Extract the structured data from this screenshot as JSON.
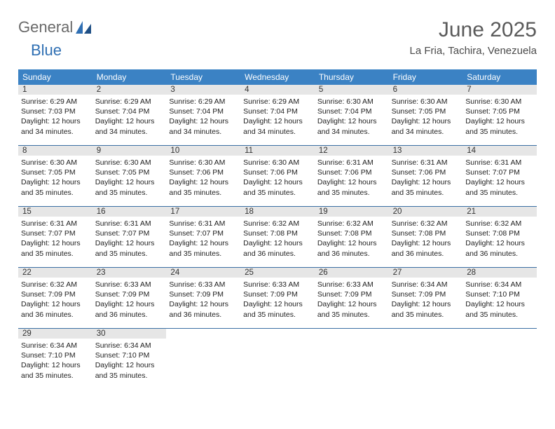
{
  "brand": {
    "part1": "General",
    "part2": "Blue"
  },
  "header": {
    "title": "June 2025",
    "location": "La Fria, Tachira, Venezuela"
  },
  "colors": {
    "header_blue": "#3b82c4",
    "divider": "#3b6fa3",
    "day_bg": "#e6e6e6",
    "text": "#222222",
    "background": "#ffffff"
  },
  "weekdays": [
    "Sunday",
    "Monday",
    "Tuesday",
    "Wednesday",
    "Thursday",
    "Friday",
    "Saturday"
  ],
  "weeks": [
    [
      {
        "day": "1",
        "sunrise": "Sunrise: 6:29 AM",
        "sunset": "Sunset: 7:03 PM",
        "daylight1": "Daylight: 12 hours",
        "daylight2": "and 34 minutes."
      },
      {
        "day": "2",
        "sunrise": "Sunrise: 6:29 AM",
        "sunset": "Sunset: 7:04 PM",
        "daylight1": "Daylight: 12 hours",
        "daylight2": "and 34 minutes."
      },
      {
        "day": "3",
        "sunrise": "Sunrise: 6:29 AM",
        "sunset": "Sunset: 7:04 PM",
        "daylight1": "Daylight: 12 hours",
        "daylight2": "and 34 minutes."
      },
      {
        "day": "4",
        "sunrise": "Sunrise: 6:29 AM",
        "sunset": "Sunset: 7:04 PM",
        "daylight1": "Daylight: 12 hours",
        "daylight2": "and 34 minutes."
      },
      {
        "day": "5",
        "sunrise": "Sunrise: 6:30 AM",
        "sunset": "Sunset: 7:04 PM",
        "daylight1": "Daylight: 12 hours",
        "daylight2": "and 34 minutes."
      },
      {
        "day": "6",
        "sunrise": "Sunrise: 6:30 AM",
        "sunset": "Sunset: 7:05 PM",
        "daylight1": "Daylight: 12 hours",
        "daylight2": "and 34 minutes."
      },
      {
        "day": "7",
        "sunrise": "Sunrise: 6:30 AM",
        "sunset": "Sunset: 7:05 PM",
        "daylight1": "Daylight: 12 hours",
        "daylight2": "and 35 minutes."
      }
    ],
    [
      {
        "day": "8",
        "sunrise": "Sunrise: 6:30 AM",
        "sunset": "Sunset: 7:05 PM",
        "daylight1": "Daylight: 12 hours",
        "daylight2": "and 35 minutes."
      },
      {
        "day": "9",
        "sunrise": "Sunrise: 6:30 AM",
        "sunset": "Sunset: 7:05 PM",
        "daylight1": "Daylight: 12 hours",
        "daylight2": "and 35 minutes."
      },
      {
        "day": "10",
        "sunrise": "Sunrise: 6:30 AM",
        "sunset": "Sunset: 7:06 PM",
        "daylight1": "Daylight: 12 hours",
        "daylight2": "and 35 minutes."
      },
      {
        "day": "11",
        "sunrise": "Sunrise: 6:30 AM",
        "sunset": "Sunset: 7:06 PM",
        "daylight1": "Daylight: 12 hours",
        "daylight2": "and 35 minutes."
      },
      {
        "day": "12",
        "sunrise": "Sunrise: 6:31 AM",
        "sunset": "Sunset: 7:06 PM",
        "daylight1": "Daylight: 12 hours",
        "daylight2": "and 35 minutes."
      },
      {
        "day": "13",
        "sunrise": "Sunrise: 6:31 AM",
        "sunset": "Sunset: 7:06 PM",
        "daylight1": "Daylight: 12 hours",
        "daylight2": "and 35 minutes."
      },
      {
        "day": "14",
        "sunrise": "Sunrise: 6:31 AM",
        "sunset": "Sunset: 7:07 PM",
        "daylight1": "Daylight: 12 hours",
        "daylight2": "and 35 minutes."
      }
    ],
    [
      {
        "day": "15",
        "sunrise": "Sunrise: 6:31 AM",
        "sunset": "Sunset: 7:07 PM",
        "daylight1": "Daylight: 12 hours",
        "daylight2": "and 35 minutes."
      },
      {
        "day": "16",
        "sunrise": "Sunrise: 6:31 AM",
        "sunset": "Sunset: 7:07 PM",
        "daylight1": "Daylight: 12 hours",
        "daylight2": "and 35 minutes."
      },
      {
        "day": "17",
        "sunrise": "Sunrise: 6:31 AM",
        "sunset": "Sunset: 7:07 PM",
        "daylight1": "Daylight: 12 hours",
        "daylight2": "and 35 minutes."
      },
      {
        "day": "18",
        "sunrise": "Sunrise: 6:32 AM",
        "sunset": "Sunset: 7:08 PM",
        "daylight1": "Daylight: 12 hours",
        "daylight2": "and 36 minutes."
      },
      {
        "day": "19",
        "sunrise": "Sunrise: 6:32 AM",
        "sunset": "Sunset: 7:08 PM",
        "daylight1": "Daylight: 12 hours",
        "daylight2": "and 36 minutes."
      },
      {
        "day": "20",
        "sunrise": "Sunrise: 6:32 AM",
        "sunset": "Sunset: 7:08 PM",
        "daylight1": "Daylight: 12 hours",
        "daylight2": "and 36 minutes."
      },
      {
        "day": "21",
        "sunrise": "Sunrise: 6:32 AM",
        "sunset": "Sunset: 7:08 PM",
        "daylight1": "Daylight: 12 hours",
        "daylight2": "and 36 minutes."
      }
    ],
    [
      {
        "day": "22",
        "sunrise": "Sunrise: 6:32 AM",
        "sunset": "Sunset: 7:09 PM",
        "daylight1": "Daylight: 12 hours",
        "daylight2": "and 36 minutes."
      },
      {
        "day": "23",
        "sunrise": "Sunrise: 6:33 AM",
        "sunset": "Sunset: 7:09 PM",
        "daylight1": "Daylight: 12 hours",
        "daylight2": "and 36 minutes."
      },
      {
        "day": "24",
        "sunrise": "Sunrise: 6:33 AM",
        "sunset": "Sunset: 7:09 PM",
        "daylight1": "Daylight: 12 hours",
        "daylight2": "and 36 minutes."
      },
      {
        "day": "25",
        "sunrise": "Sunrise: 6:33 AM",
        "sunset": "Sunset: 7:09 PM",
        "daylight1": "Daylight: 12 hours",
        "daylight2": "and 35 minutes."
      },
      {
        "day": "26",
        "sunrise": "Sunrise: 6:33 AM",
        "sunset": "Sunset: 7:09 PM",
        "daylight1": "Daylight: 12 hours",
        "daylight2": "and 35 minutes."
      },
      {
        "day": "27",
        "sunrise": "Sunrise: 6:34 AM",
        "sunset": "Sunset: 7:09 PM",
        "daylight1": "Daylight: 12 hours",
        "daylight2": "and 35 minutes."
      },
      {
        "day": "28",
        "sunrise": "Sunrise: 6:34 AM",
        "sunset": "Sunset: 7:10 PM",
        "daylight1": "Daylight: 12 hours",
        "daylight2": "and 35 minutes."
      }
    ],
    [
      {
        "day": "29",
        "sunrise": "Sunrise: 6:34 AM",
        "sunset": "Sunset: 7:10 PM",
        "daylight1": "Daylight: 12 hours",
        "daylight2": "and 35 minutes."
      },
      {
        "day": "30",
        "sunrise": "Sunrise: 6:34 AM",
        "sunset": "Sunset: 7:10 PM",
        "daylight1": "Daylight: 12 hours",
        "daylight2": "and 35 minutes."
      },
      {
        "empty": true
      },
      {
        "empty": true
      },
      {
        "empty": true
      },
      {
        "empty": true
      },
      {
        "empty": true
      }
    ]
  ]
}
